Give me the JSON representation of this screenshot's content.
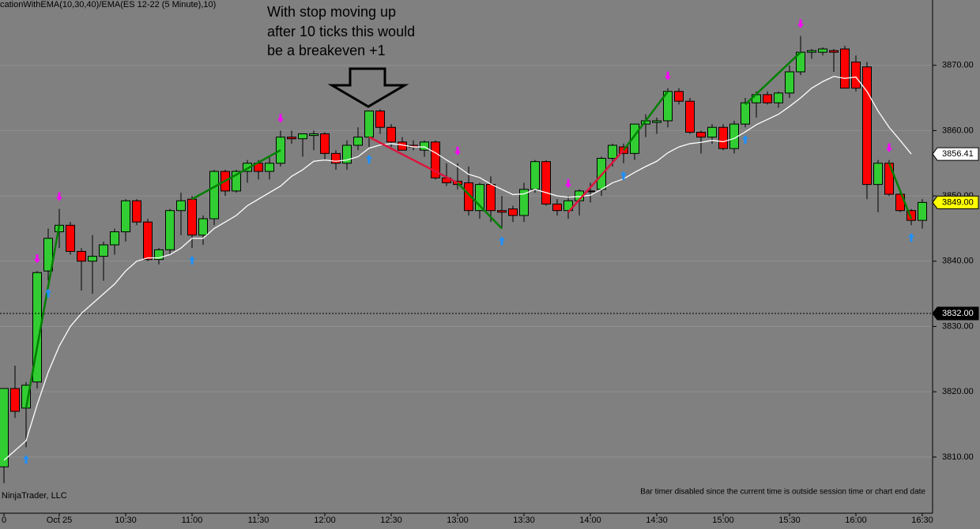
{
  "chart_data": {
    "type": "candlestick",
    "title": "cationWithEMA(10,30,40)/EMA(ES 12-22 (5 Minute),10)",
    "annotation": [
      "With stop moving up",
      "after 10 ticks this would",
      "be a breakeven +1"
    ],
    "watermark": "NinjaTrader, LLC",
    "status": "Bar timer disabled since the current time is outside session time or chart end date",
    "categories": [
      "0",
      null,
      null,
      null,
      null,
      "Oct 25",
      null,
      null,
      null,
      null,
      null,
      "10:30",
      null,
      null,
      null,
      null,
      null,
      "11:00",
      null,
      null,
      null,
      null,
      null,
      "11:30",
      null,
      null,
      null,
      null,
      null,
      "12:00",
      null,
      null,
      null,
      null,
      null,
      "12:30",
      null,
      null,
      null,
      null,
      null,
      "13:00",
      null,
      null,
      null,
      null,
      null,
      "13:30",
      null,
      null,
      null,
      null,
      null,
      "14:00",
      null,
      null,
      null,
      null,
      null,
      "14:30",
      null,
      null,
      null,
      null,
      null,
      "15:00",
      null,
      null,
      null,
      null,
      null,
      "15:30",
      null,
      null,
      null,
      null,
      null,
      "16:00",
      null,
      null,
      null,
      null,
      null,
      "16:30"
    ],
    "open": [
      3808.5,
      3820.5,
      3817.5,
      3821.5,
      3838.5,
      3844.5,
      3845.5,
      3841.5,
      3840,
      3840.75,
      3842.5,
      3844.5,
      3849.25,
      3846,
      3840.25,
      3841.75,
      3847.75,
      3849.5,
      3844,
      3846.5,
      3853.75,
      3850.75,
      3853.75,
      3855,
      3853.75,
      3855,
      3859,
      3858.75,
      3859.25,
      3859.5,
      3856.5,
      3855,
      3857.75,
      3859,
      3863,
      3860.5,
      3858.25,
      3857.75,
      3857,
      3858.25,
      3852.75,
      3852.25,
      3852,
      3847.75,
      3851.75,
      3847.75,
      3848,
      3847,
      3851,
      3855.25,
      3848.75,
      3847.75,
      3849.25,
      3850.75,
      3851,
      3855.75,
      3857.5,
      3856.5,
      3861,
      3861.25,
      3861.5,
      3866,
      3864.5,
      3859.75,
      3859,
      3860.5,
      3857.25,
      3861,
      3864.25,
      3865.5,
      3864.25,
      3865.75,
      3869,
      3872,
      3872,
      3872.25,
      3872.5,
      3870.5,
      3869.75,
      3851.75,
      3855,
      3850.25,
      3847.75,
      3846.25
    ],
    "high": [
      3820.5,
      3824,
      3821.5,
      3838.5,
      3845,
      3848,
      3846,
      3842,
      3844,
      3843,
      3845,
      3849.5,
      3849.5,
      3846.5,
      3842,
      3848,
      3850.5,
      3850,
      3847,
      3854,
      3854,
      3854,
      3855.5,
      3855.5,
      3856,
      3860,
      3860,
      3859.5,
      3860,
      3859.75,
      3857,
      3858.5,
      3860.5,
      3863,
      3863.25,
      3861,
      3859,
      3858.5,
      3858.5,
      3858.5,
      3855,
      3855,
      3854.5,
      3852,
      3853,
      3850,
      3848.5,
      3852,
      3855.5,
      3855.5,
      3849.5,
      3850,
      3851,
      3852,
      3856,
      3858,
      3858,
      3861,
      3862.5,
      3862,
      3866.5,
      3866.5,
      3865,
      3860,
      3861,
      3861,
      3861.5,
      3865,
      3866,
      3866,
      3866,
      3870,
      3874.5,
      3872.5,
      3872.75,
      3872.5,
      3873,
      3871.5,
      3870.5,
      3855.5,
      3855.5,
      3851,
      3848,
      3849.5
    ],
    "low": [
      3806,
      3816,
      3811.5,
      3820.5,
      3837,
      3842,
      3841,
      3835.5,
      3835,
      3837,
      3841,
      3843,
      3845.5,
      3840,
      3839.5,
      3841,
      3844,
      3842,
      3842.5,
      3845.5,
      3850,
      3850.5,
      3852,
      3852.5,
      3852.5,
      3854.5,
      3858,
      3856,
      3857,
      3855.5,
      3854,
      3854,
      3857,
      3857.5,
      3859.5,
      3857.5,
      3857,
      3857,
      3856,
      3852.5,
      3851.5,
      3851,
      3847,
      3846.5,
      3846,
      3845,
      3846,
      3846,
      3850.5,
      3848.5,
      3847,
      3846.5,
      3847,
      3849,
      3850,
      3854.5,
      3855,
      3855.5,
      3859,
      3859.5,
      3860.5,
      3864,
      3859.5,
      3856.5,
      3858,
      3857,
      3856.5,
      3860.5,
      3862,
      3864,
      3863.5,
      3865,
      3868.5,
      3871,
      3871.5,
      3869,
      3866.5,
      3866,
      3849.5,
      3847.5,
      3850,
      3847.5,
      3845.5,
      3845
    ],
    "close": [
      3820.5,
      3817,
      3821,
      3838.25,
      3843.5,
      3845.5,
      3841.5,
      3840,
      3840.75,
      3842.5,
      3844.5,
      3849.25,
      3846,
      3840.25,
      3841.75,
      3847.75,
      3849.25,
      3844,
      3846.5,
      3853.75,
      3850.75,
      3853.75,
      3855,
      3853.75,
      3855,
      3859,
      3858.75,
      3859.5,
      3859.5,
      3856.5,
      3855,
      3857.75,
      3859,
      3863,
      3860.5,
      3858.25,
      3857,
      3857.5,
      3858.25,
      3852.75,
      3852,
      3851.75,
      3847.75,
      3851.75,
      3847.75,
      3847.5,
      3847,
      3851,
      3855.25,
      3848.75,
      3847.75,
      3849.25,
      3850.75,
      3850.75,
      3855.75,
      3857.75,
      3856.5,
      3861,
      3861.5,
      3861.5,
      3866,
      3864.5,
      3859.75,
      3859,
      3860.5,
      3857.25,
      3861,
      3864.25,
      3865.5,
      3864.25,
      3865.75,
      3869,
      3872,
      3872.25,
      3872.5,
      3872,
      3866.5,
      3866.5,
      3851.75,
      3855,
      3850.25,
      3847.75,
      3846.25,
      3849
    ],
    "up_color": "#32cd32",
    "down_color": "#ff0000",
    "ema": {
      "color": "#ffffff",
      "values": [
        3809.5,
        3811,
        3812.5,
        3818,
        3823,
        3827,
        3830,
        3832,
        3833.5,
        3835,
        3836.5,
        3838.5,
        3840,
        3840.5,
        3840.5,
        3841,
        3842,
        3843.5,
        3843.5,
        3845,
        3846,
        3847,
        3848.5,
        3849.5,
        3850.5,
        3851.5,
        3853,
        3854,
        3855.3,
        3855.5,
        3855.3,
        3855.5,
        3856,
        3857.3,
        3857.8,
        3858,
        3857.8,
        3857.5,
        3857.5,
        3856.6,
        3855.5,
        3854.5,
        3853.3,
        3852.8,
        3851.8,
        3851,
        3850.2,
        3850.3,
        3851,
        3850.5,
        3850,
        3849.8,
        3849.9,
        3850.1,
        3851,
        3852,
        3852.6,
        3853.6,
        3854.5,
        3855.3,
        3856.6,
        3857.5,
        3858,
        3858.2,
        3858.5,
        3858.3,
        3858.8,
        3859.8,
        3860.9,
        3861.7,
        3862.5,
        3863.7,
        3865,
        3866.5,
        3867.5,
        3868.3,
        3868,
        3868.2,
        3866,
        3863,
        3860.5,
        3858.5,
        3856.41,
        null
      ]
    },
    "trades": [
      {
        "color": "#008000",
        "from": [
          2,
          3817.5
        ],
        "to": [
          5,
          3845.5
        ]
      },
      {
        "color": "#008000",
        "from": [
          17,
          3849.5
        ],
        "to": [
          25,
          3857
        ]
      },
      {
        "color": "#dc143c",
        "from": [
          33,
          3859
        ],
        "to": [
          41,
          3852
        ]
      },
      {
        "color": "#008000",
        "from": [
          41,
          3852
        ],
        "to": [
          45,
          3845
        ]
      },
      {
        "color": "#dc143c",
        "from": [
          51,
          3847.5
        ],
        "to": [
          56,
          3857
        ]
      },
      {
        "color": "#008000",
        "from": [
          56,
          3857
        ],
        "to": [
          60,
          3866
        ]
      },
      {
        "color": "#008000",
        "from": [
          67,
          3864
        ],
        "to": [
          72,
          3872
        ]
      },
      {
        "color": "#008000",
        "from": [
          80,
          3855
        ],
        "to": [
          82,
          3846.5
        ]
      }
    ],
    "buy_arrows": {
      "color": "#1e90ff",
      "indices": [
        2,
        4,
        17,
        33,
        45,
        56,
        67,
        82
      ]
    },
    "sell_arrows": {
      "color": "#ff00ff",
      "indices": [
        3,
        5,
        25,
        41,
        51,
        60,
        72,
        80
      ]
    },
    "price_markers": [
      {
        "value": 3856.41,
        "background": "#ffffff",
        "color": "#000000"
      },
      {
        "value": 3849,
        "label": "3849.00",
        "background": "#ffff00",
        "color": "#000000"
      },
      {
        "value": 3832,
        "label": "3832.00",
        "background": "#000000",
        "color": "#ffffff"
      }
    ],
    "ylim": [
      3801.4,
      3880
    ],
    "yticks": [
      {
        "value": 3810,
        "label": "3810.00"
      },
      {
        "value": 3820,
        "label": "3820.00"
      },
      {
        "value": 3830,
        "label": "3830.00"
      },
      {
        "value": 3840,
        "label": "3840.00"
      },
      {
        "value": 3850,
        "label": "3850.00"
      },
      {
        "value": 3860,
        "label": "3860.00"
      },
      {
        "value": 3870,
        "label": "3870.00"
      }
    ],
    "grid": true
  }
}
